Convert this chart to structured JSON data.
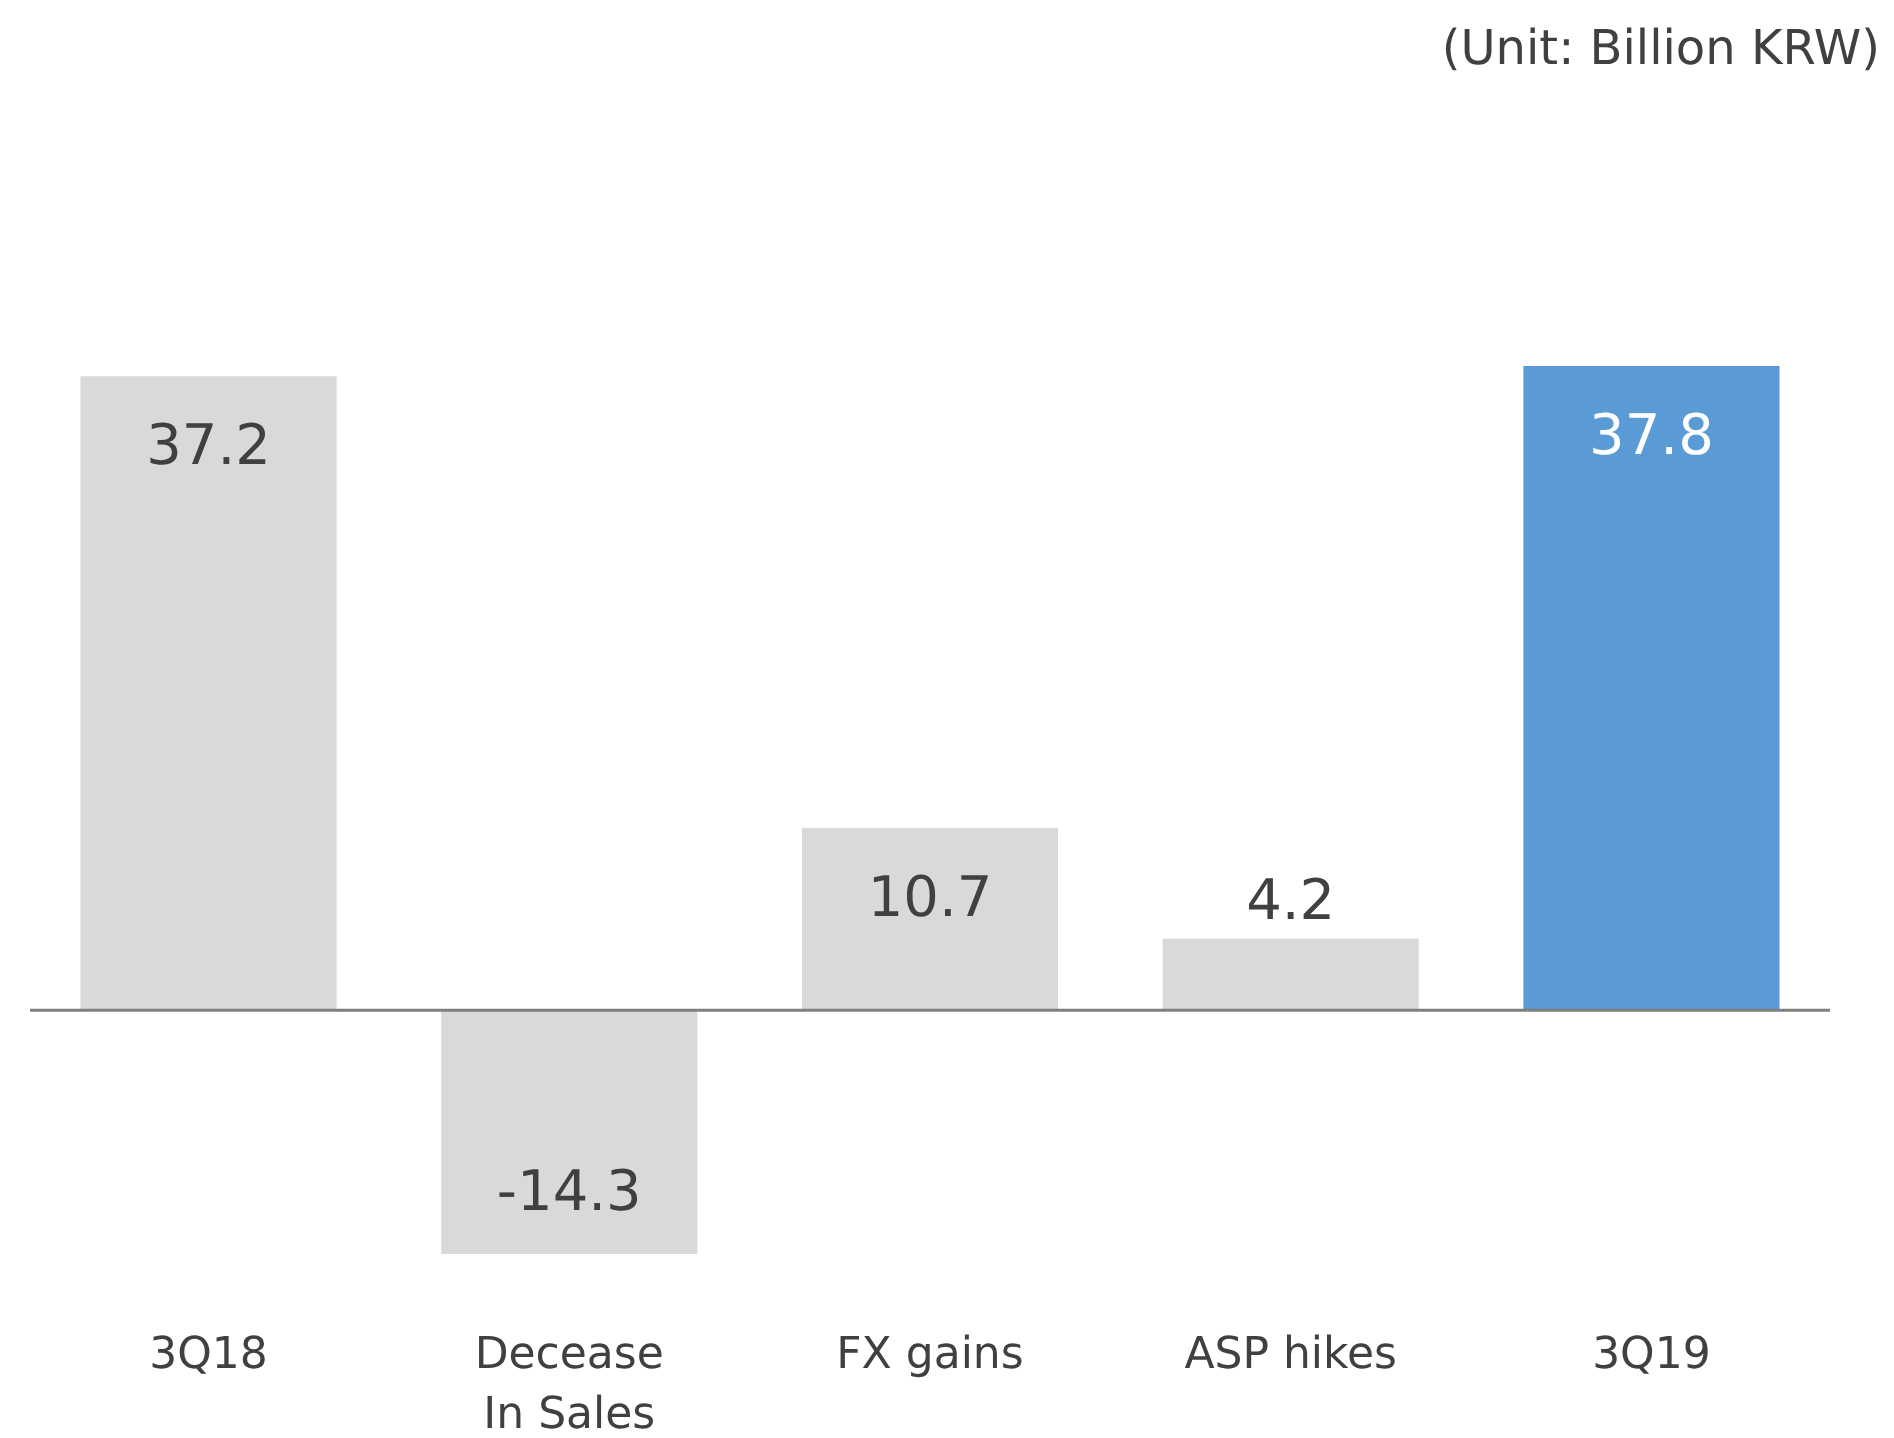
{
  "chart_data": {
    "type": "bar",
    "categories": [
      "3Q18",
      "Decease In Sales",
      "FX gains",
      "ASP hikes",
      "3Q19"
    ],
    "values": [
      37.2,
      -14.3,
      10.7,
      4.2,
      37.8
    ],
    "colors": [
      "#d9d9d9",
      "#d9d9d9",
      "#d9d9d9",
      "#d9d9d9",
      "#5b9bd5"
    ],
    "data_labels": true,
    "annotations": [
      "(Unit: Billion KRW)"
    ]
  }
}
